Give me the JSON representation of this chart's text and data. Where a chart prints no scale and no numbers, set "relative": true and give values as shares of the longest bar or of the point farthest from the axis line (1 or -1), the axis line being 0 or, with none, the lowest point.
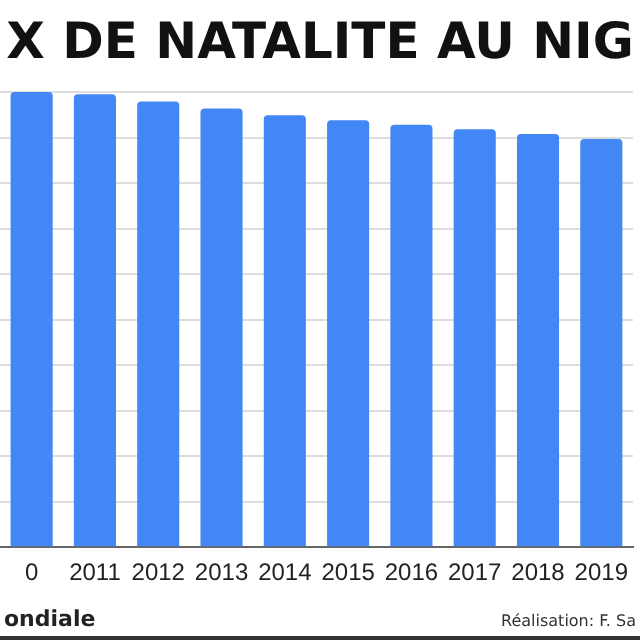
{
  "chart_data": {
    "type": "bar",
    "title": "X DE NATALITE AU NIG",
    "relative": true,
    "categories": [
      "0",
      "2011",
      "2012",
      "2013",
      "2014",
      "2015",
      "2016",
      "2017",
      "2018",
      "2019"
    ],
    "values": [
      1,
      0.995,
      0.979,
      0.964,
      0.949,
      0.938,
      0.928,
      0.918,
      0.908,
      0.897
    ],
    "color": "#4287f5",
    "grid": "y",
    "legend": false,
    "annotations": [
      "ondiale",
      "Réalisation: F. Sa"
    ]
  }
}
